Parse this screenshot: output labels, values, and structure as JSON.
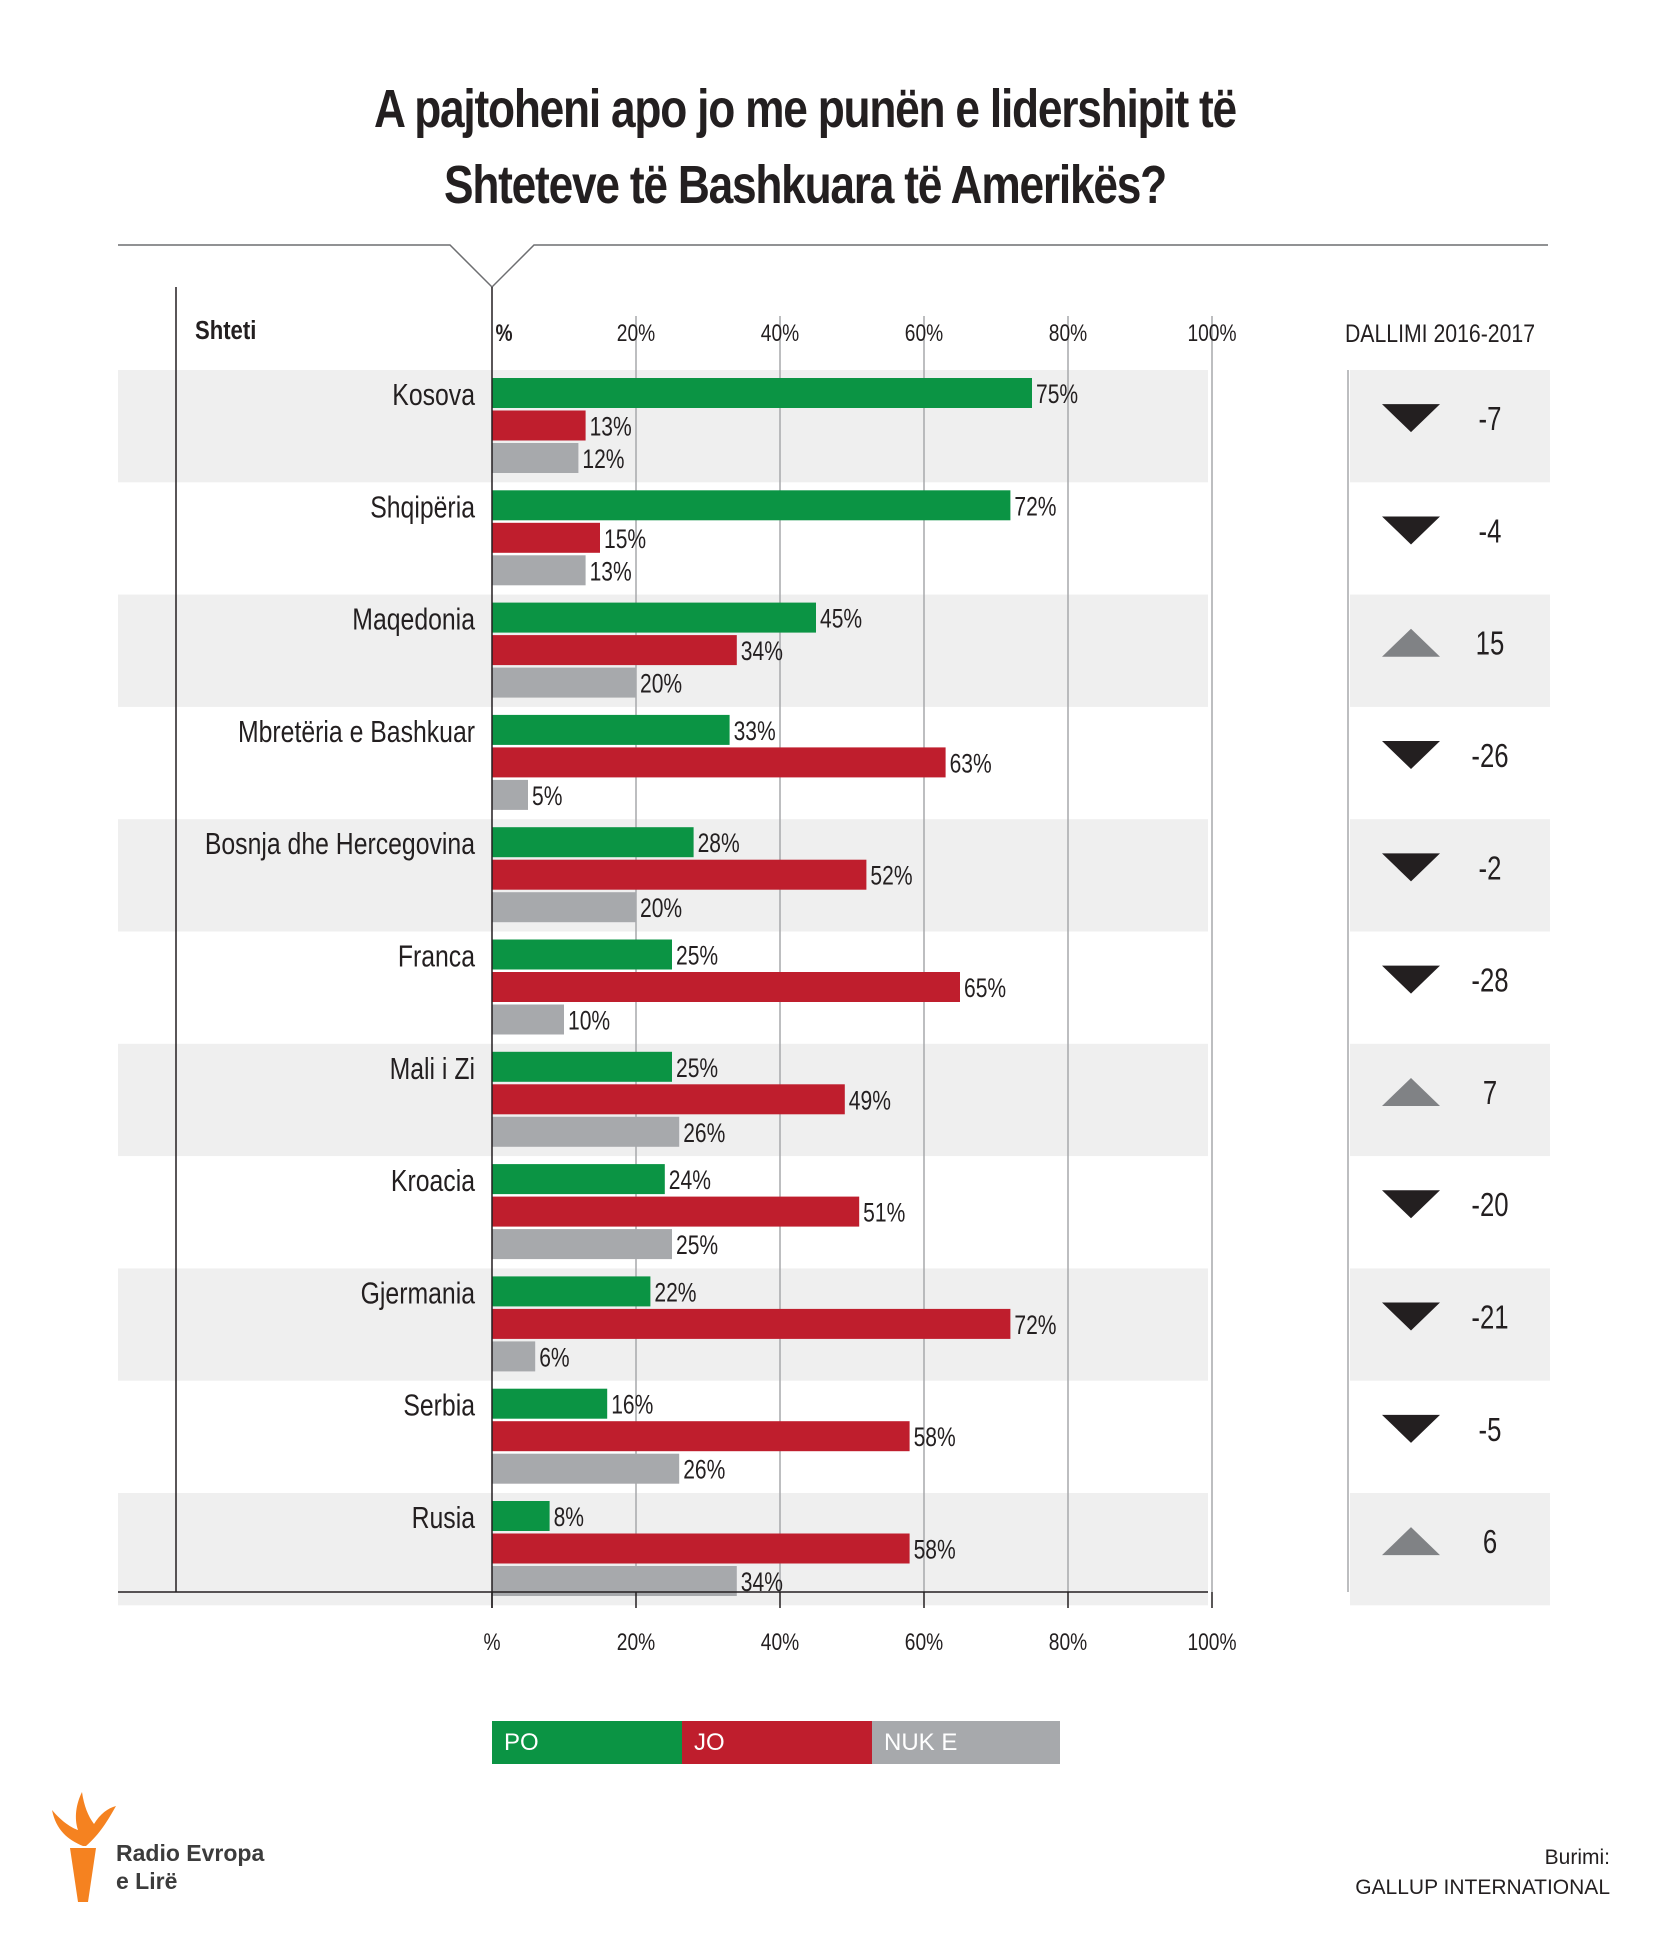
{
  "title_line1": "A pajtoheni apo jo me punën e lidershipit të",
  "title_line2": "Shteteve të Bashkuara të Amerikës?",
  "column_header_country": "Shteti",
  "column_header_diff": "DALLIMI 2016-2017",
  "axis_ticks": [
    "%",
    "20%",
    "40%",
    "60%",
    "80%",
    "100%"
  ],
  "colors": {
    "po": "#0b9444",
    "jo": "#bf1e2d",
    "nuk": "#a7a9ac",
    "band": "#efefef",
    "up": "#808285",
    "down": "#231f20"
  },
  "legend": {
    "po": "PO",
    "jo": "JO",
    "nuk": "NUK E DI/REFUZOJ"
  },
  "source_label": "Burimi:",
  "source_name": "GALLUP INTERNATIONAL",
  "brand_line1": "Radio Evropa",
  "brand_line2": "e Lirë",
  "chart_data": {
    "type": "bar",
    "orientation": "horizontal",
    "xlim": [
      0,
      100
    ],
    "categories": [
      "Kosova",
      "Shqipëria",
      "Maqedonia",
      "Mbretëria e Bashkuar",
      "Bosnja dhe Hercegovina",
      "Franca",
      "Mali i Zi",
      "Kroacia",
      "Gjermania",
      "Serbia",
      "Rusia"
    ],
    "series": [
      {
        "name": "PO",
        "values": [
          75,
          72,
          45,
          33,
          28,
          25,
          25,
          24,
          22,
          16,
          8
        ]
      },
      {
        "name": "JO",
        "values": [
          13,
          15,
          34,
          63,
          52,
          65,
          49,
          51,
          72,
          58,
          58
        ]
      },
      {
        "name": "NUK E DI/REFUZOJ",
        "values": [
          12,
          13,
          20,
          5,
          20,
          10,
          26,
          25,
          6,
          26,
          34
        ]
      }
    ],
    "diff_2016_2017": [
      -7,
      -4,
      15,
      -26,
      -2,
      -28,
      7,
      -20,
      -21,
      -5,
      6
    ]
  }
}
